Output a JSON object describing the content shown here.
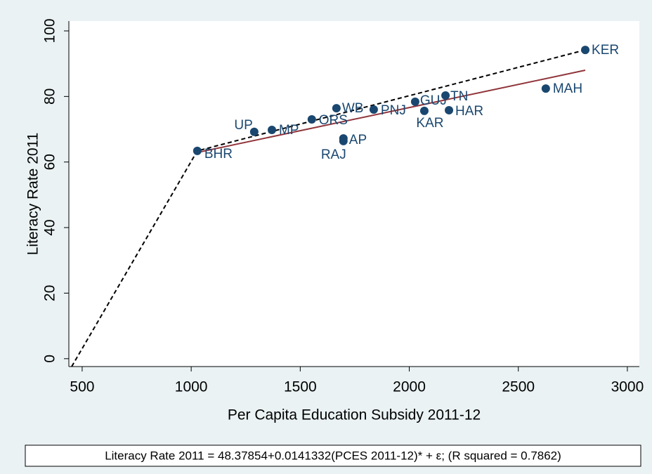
{
  "chart_data": {
    "type": "scatter",
    "x_label": "Per Capita Education Subsidy 2011-12",
    "y_label": "Literacy Rate 2011",
    "note": "Literacy Rate 2011 = 48.37854+0.0141332(PCES 2011-12)* + ε; (R squared = 0.7862)",
    "xlim": [
      439,
      3055
    ],
    "ylim": [
      -2.4,
      103
    ],
    "xticks": [
      500,
      1000,
      1500,
      2000,
      2500,
      3000
    ],
    "yticks": [
      0,
      20,
      40,
      60,
      80,
      100
    ],
    "series": [
      {
        "type": "scatter",
        "color": "#1a476f",
        "labels": [
          "BHR",
          "UP",
          "MP",
          "ORS",
          "WB",
          "PNJ",
          "AP",
          "RAJ",
          "GUJ",
          "KAR",
          "TN",
          "HAR",
          "MAH",
          "KER"
        ],
        "x": [
          1028,
          1289,
          1370,
          1553,
          1666,
          1837,
          1698,
          1698,
          2027,
          2069,
          2166,
          2182,
          2626,
          2807
        ],
        "values": [
          63.4,
          69.2,
          69.8,
          73.0,
          76.4,
          76.0,
          67.2,
          66.4,
          78.4,
          75.6,
          80.3,
          75.8,
          82.4,
          94.2
        ]
      },
      {
        "type": "line",
        "color": "#90353b",
        "x": [
          1028,
          2807
        ],
        "values": [
          62.9,
          88.0
        ]
      },
      {
        "type": "line",
        "color": "#000000",
        "dashed": true,
        "x": [
          452,
          1028,
          2807
        ],
        "values": [
          -2.4,
          63.4,
          94.2
        ]
      }
    ]
  }
}
